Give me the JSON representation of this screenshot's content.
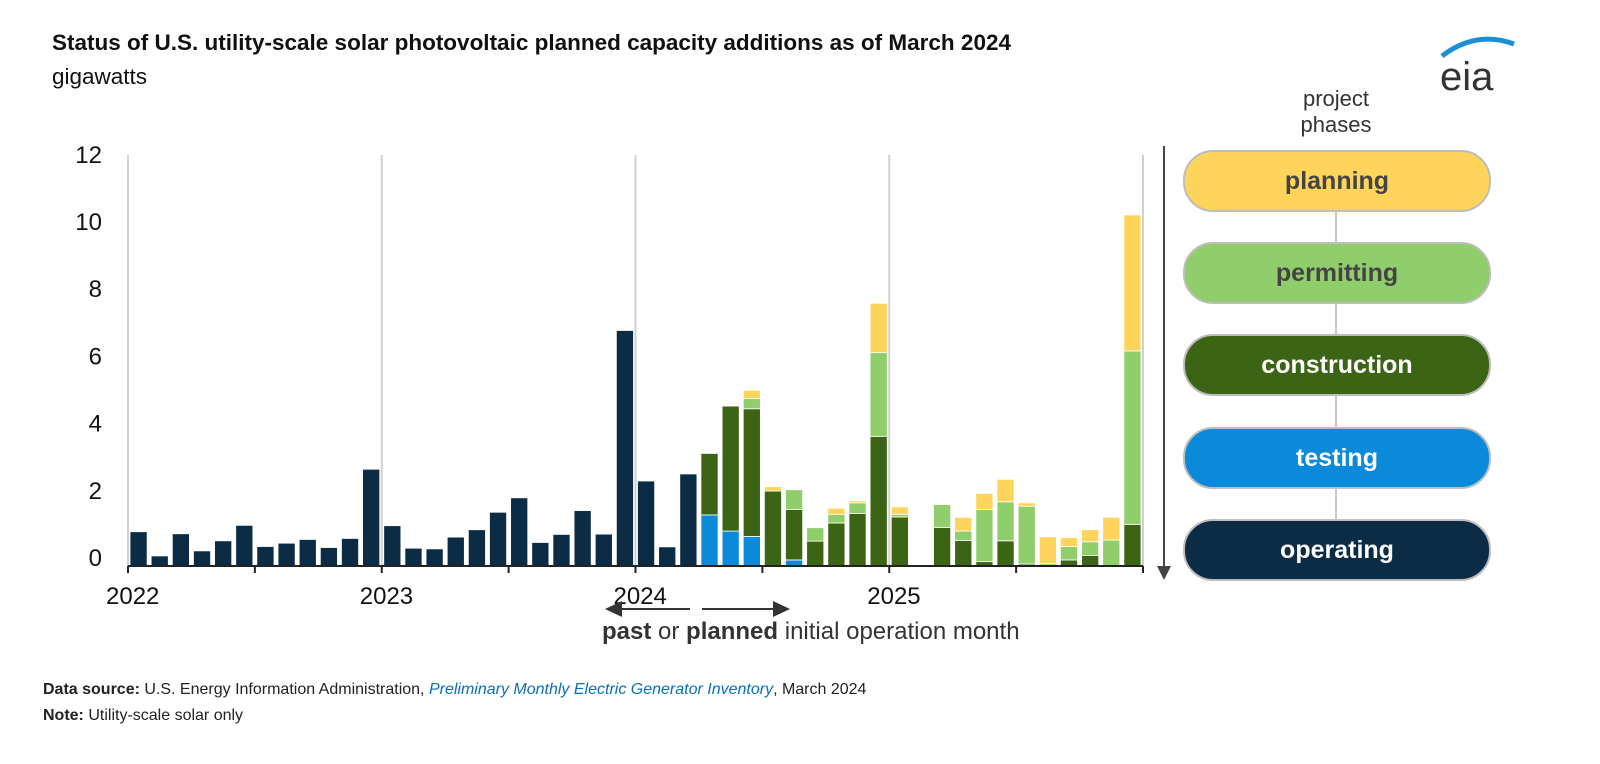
{
  "title": "Status of U.S. utility-scale solar photovoltaic planned capacity additions as of March 2024",
  "subtitle": "gigawatts",
  "logo_text": "eia",
  "legend": {
    "heading_line1": "project",
    "heading_line2": "phases",
    "items": [
      {
        "label": "planning",
        "color": "#FFD45A",
        "text_color": "#444444"
      },
      {
        "label": "permitting",
        "color": "#8FCE6A",
        "text_color": "#444444"
      },
      {
        "label": "construction",
        "color": "#3B6415",
        "text_color": "#FFFFFF"
      },
      {
        "label": "testing",
        "color": "#0B8AD9",
        "text_color": "#FFFFFF"
      },
      {
        "label": "operating",
        "color": "#0C2C45",
        "text_color": "#FFFFFF"
      }
    ]
  },
  "axis_caption": {
    "past": "past",
    "or": " or ",
    "planned": "planned",
    "rest": " initial operation month"
  },
  "footer": {
    "source_label": "Data source:",
    "source_text": " U.S. Energy Information Administration, ",
    "source_link": "Preliminary Monthly Electric Generator Inventory",
    "source_suffix": ", March 2024",
    "note_label": "Note:",
    "note_text": " Utility-scale solar only"
  },
  "chart_data": {
    "type": "bar",
    "stacked": true,
    "title": "Status of U.S. utility-scale solar photovoltaic planned capacity additions as of March 2024",
    "ylabel": "gigawatts",
    "ylim": [
      0,
      12
    ],
    "yticks": [
      "0",
      "2",
      "4",
      "6",
      "8",
      "10",
      "12"
    ],
    "xtick_labels": [
      "2022",
      "2023",
      "2024",
      "2025"
    ],
    "grid": "vertical at year boundaries",
    "legend_placement": "right",
    "categories": [
      "2022-01",
      "2022-02",
      "2022-03",
      "2022-04",
      "2022-05",
      "2022-06",
      "2022-07",
      "2022-08",
      "2022-09",
      "2022-10",
      "2022-11",
      "2022-12",
      "2023-01",
      "2023-02",
      "2023-03",
      "2023-04",
      "2023-05",
      "2023-06",
      "2023-07",
      "2023-08",
      "2023-09",
      "2023-10",
      "2023-11",
      "2023-12",
      "2024-01",
      "2024-02",
      "2024-03",
      "2024-04",
      "2024-05",
      "2024-06",
      "2024-07",
      "2024-08",
      "2024-09",
      "2024-10",
      "2024-11",
      "2024-12",
      "2025-01",
      "2025-02",
      "2025-03",
      "2025-04",
      "2025-05",
      "2025-06",
      "2025-07",
      "2025-08",
      "2025-09",
      "2025-10",
      "2025-11",
      "2025-12"
    ],
    "series": [
      {
        "name": "operating",
        "color": "#0C2C45",
        "values": [
          1.02,
          0.3,
          0.96,
          0.45,
          0.75,
          1.21,
          0.58,
          0.68,
          0.79,
          0.55,
          0.82,
          2.88,
          1.2,
          0.53,
          0.51,
          0.86,
          1.08,
          1.6,
          2.03,
          0.7,
          0.94,
          1.65,
          0.95,
          7.01,
          2.53,
          0.57,
          2.74,
          0,
          0,
          0,
          0,
          0,
          0,
          0,
          0,
          0,
          0,
          0,
          0,
          0,
          0,
          0,
          0,
          0,
          0,
          0,
          0,
          0
        ]
      },
      {
        "name": "testing",
        "color": "#0B8AD9",
        "values": [
          0,
          0,
          0,
          0,
          0,
          0,
          0,
          0,
          0,
          0,
          0,
          0,
          0,
          0,
          0,
          0,
          0,
          0,
          0,
          0,
          0,
          0,
          0,
          0,
          0,
          0,
          0,
          1.52,
          1.04,
          0.88,
          0,
          0.18,
          0,
          0,
          0,
          0,
          0,
          0,
          0,
          0,
          0,
          0,
          0,
          0,
          0,
          0,
          0,
          0
        ]
      },
      {
        "name": "construction",
        "color": "#3B6415",
        "values": [
          0,
          0,
          0,
          0,
          0,
          0,
          0,
          0,
          0,
          0,
          0,
          0,
          0,
          0,
          0,
          0,
          0,
          0,
          0,
          0,
          0,
          0,
          0,
          0,
          0,
          0,
          0,
          1.83,
          3.72,
          3.8,
          2.23,
          1.5,
          0.74,
          1.28,
          1.56,
          3.86,
          1.46,
          0,
          1.15,
          0.76,
          0.13,
          0.75,
          0.06,
          0,
          0.18,
          0.31,
          0,
          1.24
        ]
      },
      {
        "name": "permitting",
        "color": "#8FCE6A",
        "values": [
          0,
          0,
          0,
          0,
          0,
          0,
          0,
          0,
          0,
          0,
          0,
          0,
          0,
          0,
          0,
          0,
          0,
          0,
          0,
          0,
          0,
          0,
          0,
          0,
          0,
          0,
          0,
          0,
          0,
          0.31,
          0,
          0.59,
          0.4,
          0.26,
          0.32,
          2.49,
          0.08,
          0,
          0.68,
          0.28,
          1.55,
          1.16,
          1.72,
          0.07,
          0.4,
          0.41,
          0.77,
          5.16
        ]
      },
      {
        "name": "planning",
        "color": "#FFD45A",
        "values": [
          0,
          0,
          0,
          0,
          0,
          0,
          0,
          0,
          0,
          0,
          0,
          0,
          0,
          0,
          0,
          0,
          0,
          0,
          0,
          0,
          0,
          0,
          0,
          0,
          0,
          0,
          0,
          0,
          0,
          0.24,
          0.13,
          0,
          0,
          0.18,
          0.06,
          1.47,
          0.22,
          0,
          0,
          0.41,
          0.48,
          0.67,
          0.1,
          0.8,
          0.27,
          0.36,
          0.68,
          4.05
        ]
      }
    ]
  }
}
